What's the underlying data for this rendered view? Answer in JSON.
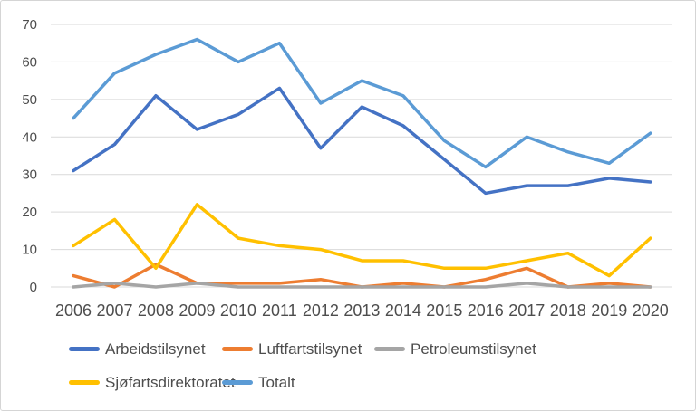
{
  "chart_data": {
    "type": "line",
    "title": "",
    "xlabel": "",
    "ylabel": "",
    "categories": [
      "2006",
      "2007",
      "2008",
      "2009",
      "2010",
      "2011",
      "2012",
      "2013",
      "2014",
      "2015",
      "2016",
      "2017",
      "2018",
      "2019",
      "2020"
    ],
    "series": [
      {
        "name": "Arbeidstilsynet",
        "color": "#4472C4",
        "values": [
          31,
          38,
          51,
          42,
          46,
          53,
          37,
          48,
          43,
          34,
          25,
          27,
          27,
          29,
          28
        ]
      },
      {
        "name": "Luftfartstilsynet",
        "color": "#ED7D31",
        "values": [
          3,
          0,
          6,
          1,
          1,
          1,
          2,
          0,
          1,
          0,
          2,
          5,
          0,
          1,
          0
        ]
      },
      {
        "name": "Petroleumstilsynet",
        "color": "#A5A5A5",
        "values": [
          0,
          1,
          0,
          1,
          0,
          0,
          0,
          0,
          0,
          0,
          0,
          1,
          0,
          0,
          0
        ]
      },
      {
        "name": "Sjøfartsdirektoratet",
        "color": "#FFC000",
        "values": [
          11,
          18,
          5,
          22,
          13,
          11,
          10,
          7,
          7,
          5,
          5,
          7,
          9,
          3,
          13
        ]
      },
      {
        "name": "Totalt",
        "color": "#5B9BD5",
        "values": [
          45,
          57,
          62,
          66,
          60,
          65,
          49,
          55,
          51,
          39,
          32,
          40,
          36,
          33,
          41
        ]
      }
    ],
    "ylim": [
      0,
      70
    ],
    "yticks": [
      0,
      10,
      20,
      30,
      40,
      50,
      60,
      70
    ],
    "grid": true,
    "legend_position": "bottom",
    "gridline_color": "#D9D9D9",
    "axis_text_color": "#4D4D4D"
  }
}
